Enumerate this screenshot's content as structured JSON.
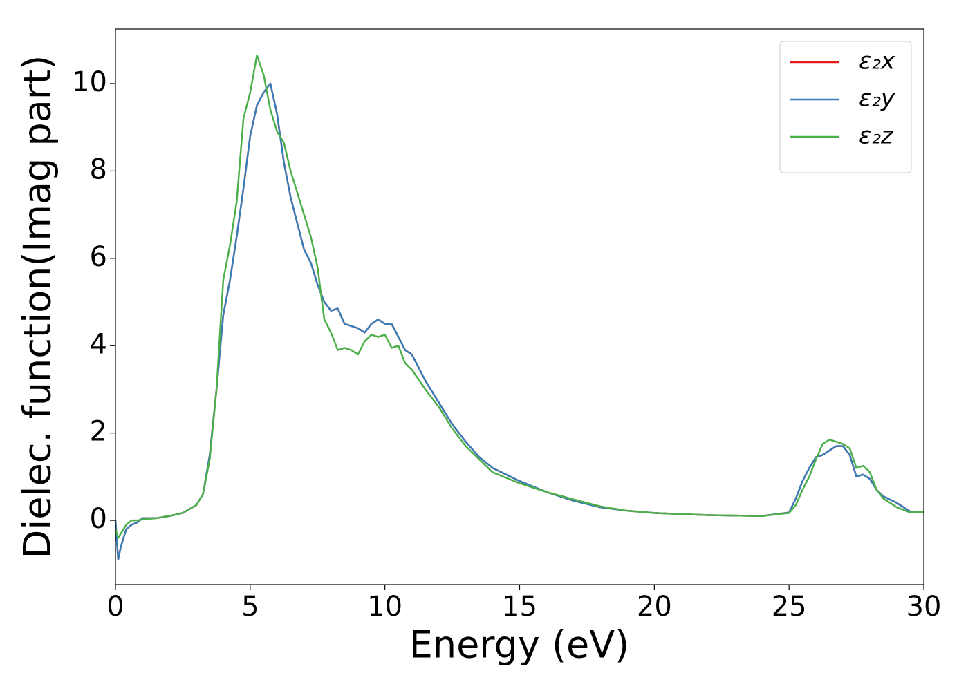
{
  "chart_data": {
    "type": "line",
    "xlabel": "Energy (eV)",
    "ylabel": "Dielec. function(Imag part)",
    "xlim": [
      0,
      30
    ],
    "ylim": [
      -1.47,
      11.25
    ],
    "xticks": [
      0,
      5,
      10,
      15,
      20,
      25,
      30
    ],
    "yticks": [
      0,
      2,
      4,
      6,
      8,
      10
    ],
    "legend": "upper right",
    "grid": false,
    "x": [
      0,
      0.1,
      0.2,
      0.4,
      0.6,
      0.8,
      1,
      1.5,
      2,
      2.5,
      3,
      3.25,
      3.5,
      3.75,
      4,
      4.25,
      4.5,
      4.75,
      5,
      5.25,
      5.5,
      5.75,
      6,
      6.25,
      6.5,
      6.75,
      7,
      7.25,
      7.5,
      7.75,
      8,
      8.25,
      8.5,
      8.75,
      9,
      9.25,
      9.5,
      9.75,
      10,
      10.25,
      10.5,
      10.75,
      11,
      11.5,
      12,
      12.5,
      13,
      13.5,
      14,
      15,
      16,
      17,
      18,
      19,
      20,
      22,
      24,
      25,
      25.25,
      25.5,
      25.75,
      26,
      26.25,
      26.5,
      26.75,
      27,
      27.25,
      27.5,
      27.75,
      28,
      28.25,
      28.5,
      29,
      29.5,
      30
    ],
    "series": [
      {
        "name": "ε₂x",
        "color": "#e41a1c",
        "values": [
          0,
          -0.9,
          -0.6,
          -0.2,
          -0.1,
          -0.05,
          0.05,
          0.05,
          0.1,
          0.17,
          0.35,
          0.6,
          1.5,
          3.0,
          4.7,
          5.5,
          6.5,
          7.6,
          8.8,
          9.5,
          9.8,
          10.0,
          9.3,
          8.2,
          7.4,
          6.8,
          6.2,
          5.9,
          5.4,
          5.0,
          4.8,
          4.85,
          4.5,
          4.45,
          4.4,
          4.3,
          4.5,
          4.6,
          4.5,
          4.5,
          4.2,
          3.9,
          3.8,
          3.2,
          2.7,
          2.2,
          1.8,
          1.45,
          1.2,
          0.9,
          0.65,
          0.45,
          0.3,
          0.22,
          0.17,
          0.12,
          0.1,
          0.18,
          0.5,
          0.9,
          1.2,
          1.45,
          1.5,
          1.6,
          1.7,
          1.7,
          1.5,
          1.0,
          1.05,
          0.95,
          0.7,
          0.55,
          0.4,
          0.2,
          0.2
        ]
      },
      {
        "name": "ε₂y",
        "color": "#377eb8",
        "values": [
          0,
          -0.9,
          -0.6,
          -0.2,
          -0.1,
          -0.05,
          0.05,
          0.05,
          0.1,
          0.17,
          0.35,
          0.6,
          1.5,
          3.0,
          4.7,
          5.5,
          6.5,
          7.6,
          8.8,
          9.5,
          9.8,
          10.0,
          9.3,
          8.2,
          7.4,
          6.8,
          6.2,
          5.9,
          5.4,
          5.0,
          4.8,
          4.85,
          4.5,
          4.45,
          4.4,
          4.3,
          4.5,
          4.6,
          4.5,
          4.5,
          4.2,
          3.9,
          3.8,
          3.2,
          2.7,
          2.2,
          1.8,
          1.45,
          1.2,
          0.9,
          0.65,
          0.45,
          0.3,
          0.22,
          0.17,
          0.12,
          0.1,
          0.18,
          0.5,
          0.9,
          1.2,
          1.45,
          1.5,
          1.6,
          1.7,
          1.7,
          1.5,
          1.0,
          1.05,
          0.95,
          0.7,
          0.55,
          0.4,
          0.2,
          0.2
        ]
      },
      {
        "name": "ε₂z",
        "color": "#4daf4a",
        "values": [
          -0.2,
          -0.4,
          -0.3,
          -0.1,
          0,
          0,
          0.02,
          0.05,
          0.1,
          0.17,
          0.35,
          0.6,
          1.4,
          3.0,
          5.5,
          6.3,
          7.3,
          9.2,
          9.8,
          10.65,
          10.2,
          9.4,
          8.9,
          8.65,
          8.0,
          7.5,
          7.0,
          6.5,
          5.8,
          4.6,
          4.3,
          3.9,
          3.95,
          3.9,
          3.8,
          4.1,
          4.25,
          4.2,
          4.25,
          3.95,
          4.0,
          3.6,
          3.45,
          3.0,
          2.6,
          2.1,
          1.7,
          1.4,
          1.1,
          0.85,
          0.65,
          0.48,
          0.32,
          0.22,
          0.17,
          0.12,
          0.1,
          0.17,
          0.35,
          0.7,
          1.0,
          1.4,
          1.75,
          1.85,
          1.8,
          1.75,
          1.65,
          1.2,
          1.25,
          1.1,
          0.7,
          0.5,
          0.3,
          0.18,
          0.2
        ]
      }
    ]
  }
}
